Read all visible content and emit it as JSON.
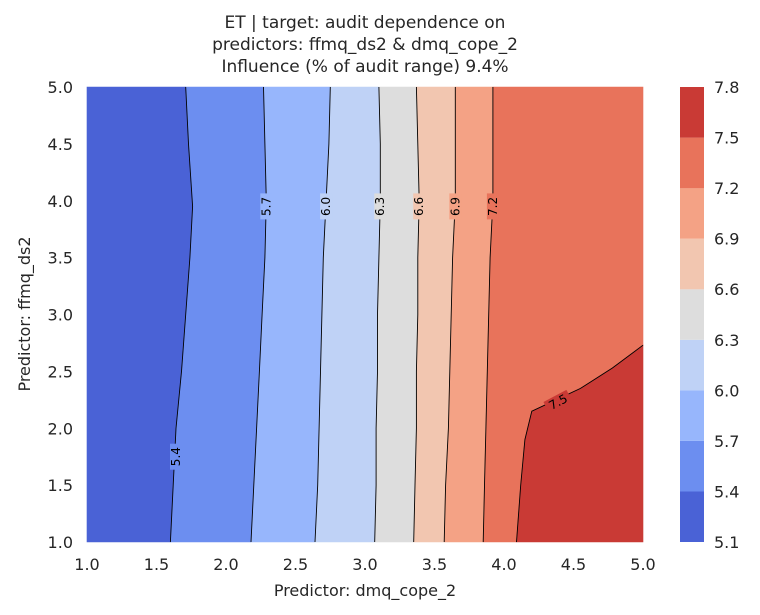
{
  "chart_data": {
    "type": "contour",
    "title": [
      "ET | target: audit dependence on",
      "predictors: ffmq_ds2 & dmq_cope_2",
      "Influence (% of audit range) 9.4%"
    ],
    "xlabel": "Predictor: dmq_cope_2",
    "ylabel": "Predictor: ffmq_ds2",
    "xlim": [
      1.0,
      5.0
    ],
    "ylim": [
      1.0,
      5.0
    ],
    "x_ticks": [
      "1.0",
      "1.5",
      "2.0",
      "2.5",
      "3.0",
      "3.5",
      "4.0",
      "4.5",
      "5.0"
    ],
    "y_ticks": [
      "1.0",
      "1.5",
      "2.0",
      "2.5",
      "3.0",
      "3.5",
      "4.0",
      "4.5",
      "5.0"
    ],
    "levels": [
      5.1,
      5.4,
      5.7,
      6.0,
      6.3,
      6.6,
      6.9,
      7.2,
      7.5,
      7.8
    ],
    "colorbar_ticks": [
      "7.8",
      "7.5",
      "7.2",
      "6.9",
      "6.6",
      "6.3",
      "6.0",
      "5.7",
      "5.4",
      "5.1"
    ],
    "band_colors": [
      "#4a62d6",
      "#6c8ef0",
      "#97b6fc",
      "#bfd2f6",
      "#dddddd",
      "#f2c6b0",
      "#f4a285",
      "#e8735b",
      "#c93a35"
    ],
    "contours": [
      {
        "level": 5.4,
        "label": "5.4",
        "points": [
          [
            1.6,
            1.0
          ],
          [
            1.62,
            1.5
          ],
          [
            1.64,
            2.0
          ],
          [
            1.68,
            2.5
          ],
          [
            1.71,
            3.0
          ],
          [
            1.74,
            3.5
          ],
          [
            1.76,
            3.95
          ],
          [
            1.73,
            4.5
          ],
          [
            1.71,
            5.0
          ]
        ],
        "label_pos": [
          1.64,
          1.75
        ]
      },
      {
        "level": 5.7,
        "label": "5.7",
        "points": [
          [
            2.18,
            1.0
          ],
          [
            2.2,
            1.5
          ],
          [
            2.22,
            2.0
          ],
          [
            2.24,
            2.5
          ],
          [
            2.26,
            3.0
          ],
          [
            2.28,
            3.5
          ],
          [
            2.29,
            4.0
          ],
          [
            2.28,
            4.5
          ],
          [
            2.27,
            5.0
          ]
        ],
        "label_pos": [
          2.29,
          3.95
        ]
      },
      {
        "level": 6.0,
        "label": "6.0",
        "points": [
          [
            2.64,
            1.0
          ],
          [
            2.66,
            1.5
          ],
          [
            2.67,
            2.0
          ],
          [
            2.68,
            2.5
          ],
          [
            2.69,
            3.0
          ],
          [
            2.7,
            3.5
          ],
          [
            2.72,
            4.0
          ],
          [
            2.74,
            4.5
          ],
          [
            2.75,
            5.0
          ]
        ],
        "label_pos": [
          2.72,
          3.95
        ]
      },
      {
        "level": 6.3,
        "label": "6.3",
        "points": [
          [
            3.07,
            1.0
          ],
          [
            3.08,
            1.5
          ],
          [
            3.08,
            2.0
          ],
          [
            3.09,
            2.5
          ],
          [
            3.09,
            3.0
          ],
          [
            3.1,
            3.5
          ],
          [
            3.11,
            4.0
          ],
          [
            3.11,
            4.5
          ],
          [
            3.1,
            5.0
          ]
        ],
        "label_pos": [
          3.11,
          3.95
        ]
      },
      {
        "level": 6.6,
        "label": "6.6",
        "points": [
          [
            3.35,
            1.0
          ],
          [
            3.36,
            1.5
          ],
          [
            3.37,
            2.0
          ],
          [
            3.37,
            2.5
          ],
          [
            3.38,
            3.0
          ],
          [
            3.38,
            3.5
          ],
          [
            3.39,
            4.0
          ],
          [
            3.38,
            4.5
          ],
          [
            3.37,
            5.0
          ]
        ],
        "label_pos": [
          3.39,
          3.95
        ]
      },
      {
        "level": 6.9,
        "label": "6.9",
        "points": [
          [
            3.57,
            1.0
          ],
          [
            3.58,
            1.5
          ],
          [
            3.6,
            2.0
          ],
          [
            3.61,
            2.5
          ],
          [
            3.62,
            3.0
          ],
          [
            3.63,
            3.5
          ],
          [
            3.65,
            4.0
          ],
          [
            3.65,
            4.5
          ],
          [
            3.65,
            5.0
          ]
        ],
        "label_pos": [
          3.65,
          3.95
        ]
      },
      {
        "level": 7.2,
        "label": "7.2",
        "points": [
          [
            3.85,
            1.0
          ],
          [
            3.86,
            1.5
          ],
          [
            3.87,
            2.0
          ],
          [
            3.88,
            2.5
          ],
          [
            3.89,
            3.0
          ],
          [
            3.9,
            3.5
          ],
          [
            3.92,
            4.0
          ],
          [
            3.92,
            4.5
          ],
          [
            3.92,
            5.0
          ]
        ],
        "label_pos": [
          3.92,
          3.95
        ]
      },
      {
        "level": 7.5,
        "label": "7.5",
        "points": [
          [
            4.09,
            1.0
          ],
          [
            4.12,
            1.5
          ],
          [
            4.15,
            1.9
          ],
          [
            4.2,
            2.15
          ],
          [
            4.55,
            2.35
          ],
          [
            4.78,
            2.53
          ],
          [
            5.0,
            2.73
          ]
        ],
        "label_pos": [
          4.39,
          2.23
        ]
      }
    ]
  }
}
